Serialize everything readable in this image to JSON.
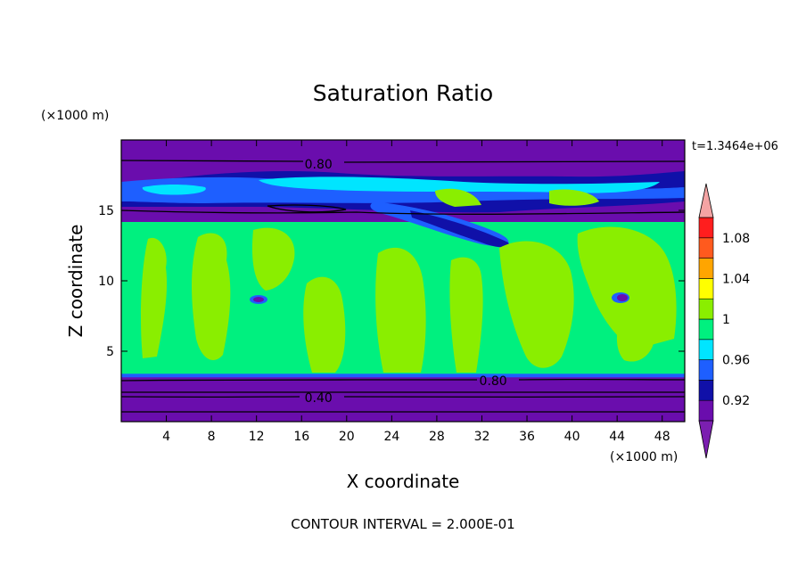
{
  "chart_data": {
    "type": "heatmap",
    "title": "Saturation Ratio",
    "xlabel": "X coordinate",
    "ylabel": "Z coordinate",
    "x_unit": "(×1000 m)",
    "y_unit": "(×1000 m)",
    "time_label": "t=1.3464e+06",
    "footer": "CONTOUR INTERVAL = 2.000E-01",
    "xlim": [
      0,
      50
    ],
    "ylim": [
      0,
      20
    ],
    "x_ticks": [
      4,
      8,
      12,
      16,
      20,
      24,
      28,
      32,
      36,
      40,
      44,
      48
    ],
    "y_ticks": [
      5,
      10,
      15
    ],
    "contour_labels": [
      {
        "text": "0.80",
        "x": 17.5,
        "y": 18.3
      },
      {
        "text": "0.80",
        "x": 33.0,
        "y": 2.9
      },
      {
        "text": "0.40",
        "x": 17.5,
        "y": 1.7
      }
    ],
    "colorbar": {
      "levels": [
        0.9,
        0.92,
        0.94,
        0.96,
        0.98,
        1.0,
        1.02,
        1.04,
        1.06,
        1.08,
        1.1
      ],
      "tick_labels": [
        "0.92",
        "0.96",
        "1",
        "1.04",
        "1.08"
      ],
      "tick_values": [
        0.92,
        0.96,
        1.0,
        1.04,
        1.08
      ],
      "colors": [
        "#6a0dad",
        "#1010a8",
        "#1e5fff",
        "#00e5ff",
        "#00f07f",
        "#8aee00",
        "#ffff00",
        "#ffa500",
        "#ff5a1e",
        "#ff1e1e"
      ],
      "under_color": "#7b1fb0",
      "over_color": "#f4a4a4"
    },
    "palette": {
      "purple": "#6a0dad",
      "dark_blue": "#1010a8",
      "blue": "#1e5fff",
      "cyan": "#00e5ff",
      "teal_green": "#00f07f",
      "yellow_green": "#8aee00"
    }
  }
}
